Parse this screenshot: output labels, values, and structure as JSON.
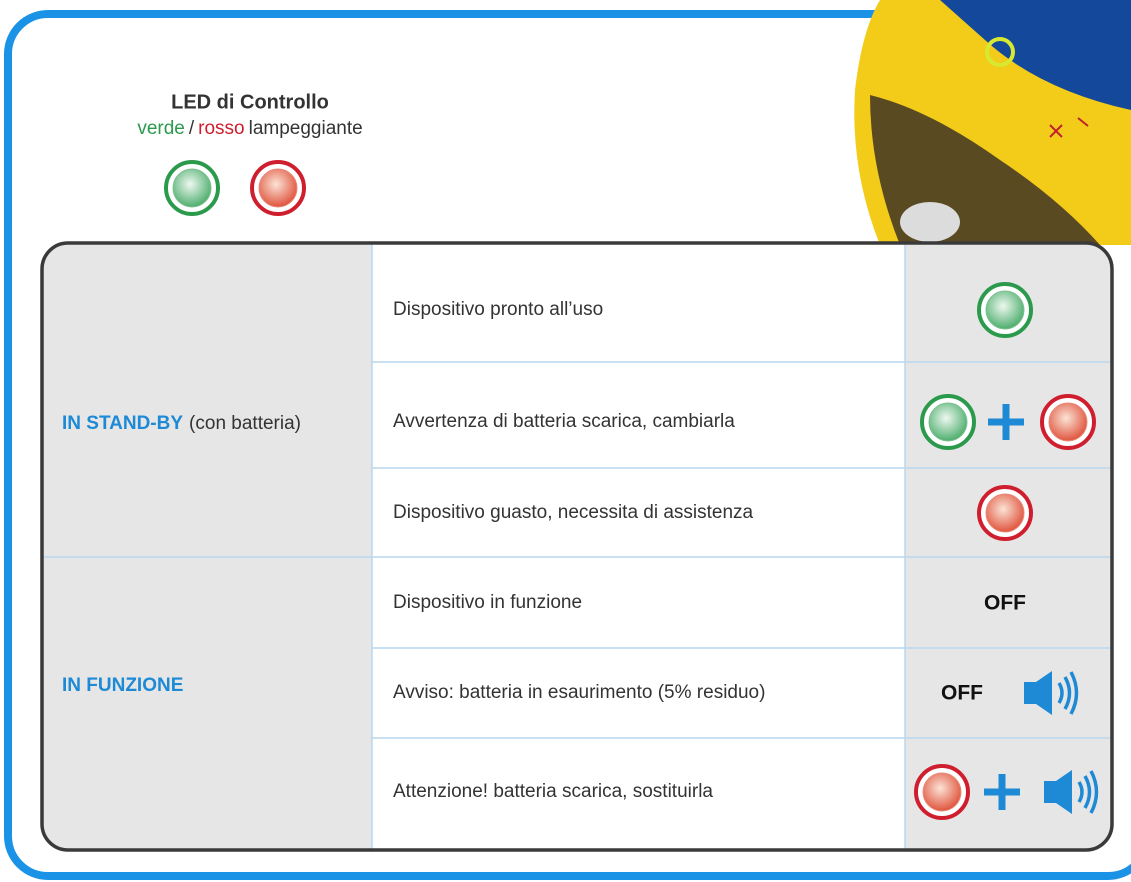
{
  "header": {
    "title": "LED di Controllo",
    "subtitle": {
      "green": "verde",
      "separator": "/",
      "red": "rosso",
      "rest": "lampeggiante"
    }
  },
  "table": {
    "sections": [
      {
        "label": "IN STAND-BY",
        "note": "(con batteria)",
        "rows": [
          {
            "text": "Dispositivo pronto all’uso"
          },
          {
            "text": "Avvertenza di batteria scarica, cambiarla"
          },
          {
            "text": "Dispositivo guasto, necessita di assistenza"
          }
        ]
      },
      {
        "label": "IN FUNZIONE",
        "rows": [
          {
            "text": "Dispositivo in funzione",
            "indicator": "OFF"
          },
          {
            "text": "Avviso: batteria in esaurimento (5% residuo)",
            "indicator": "OFF"
          },
          {
            "text": "Attenzione! batteria scarica, sostituirla"
          }
        ]
      }
    ]
  }
}
